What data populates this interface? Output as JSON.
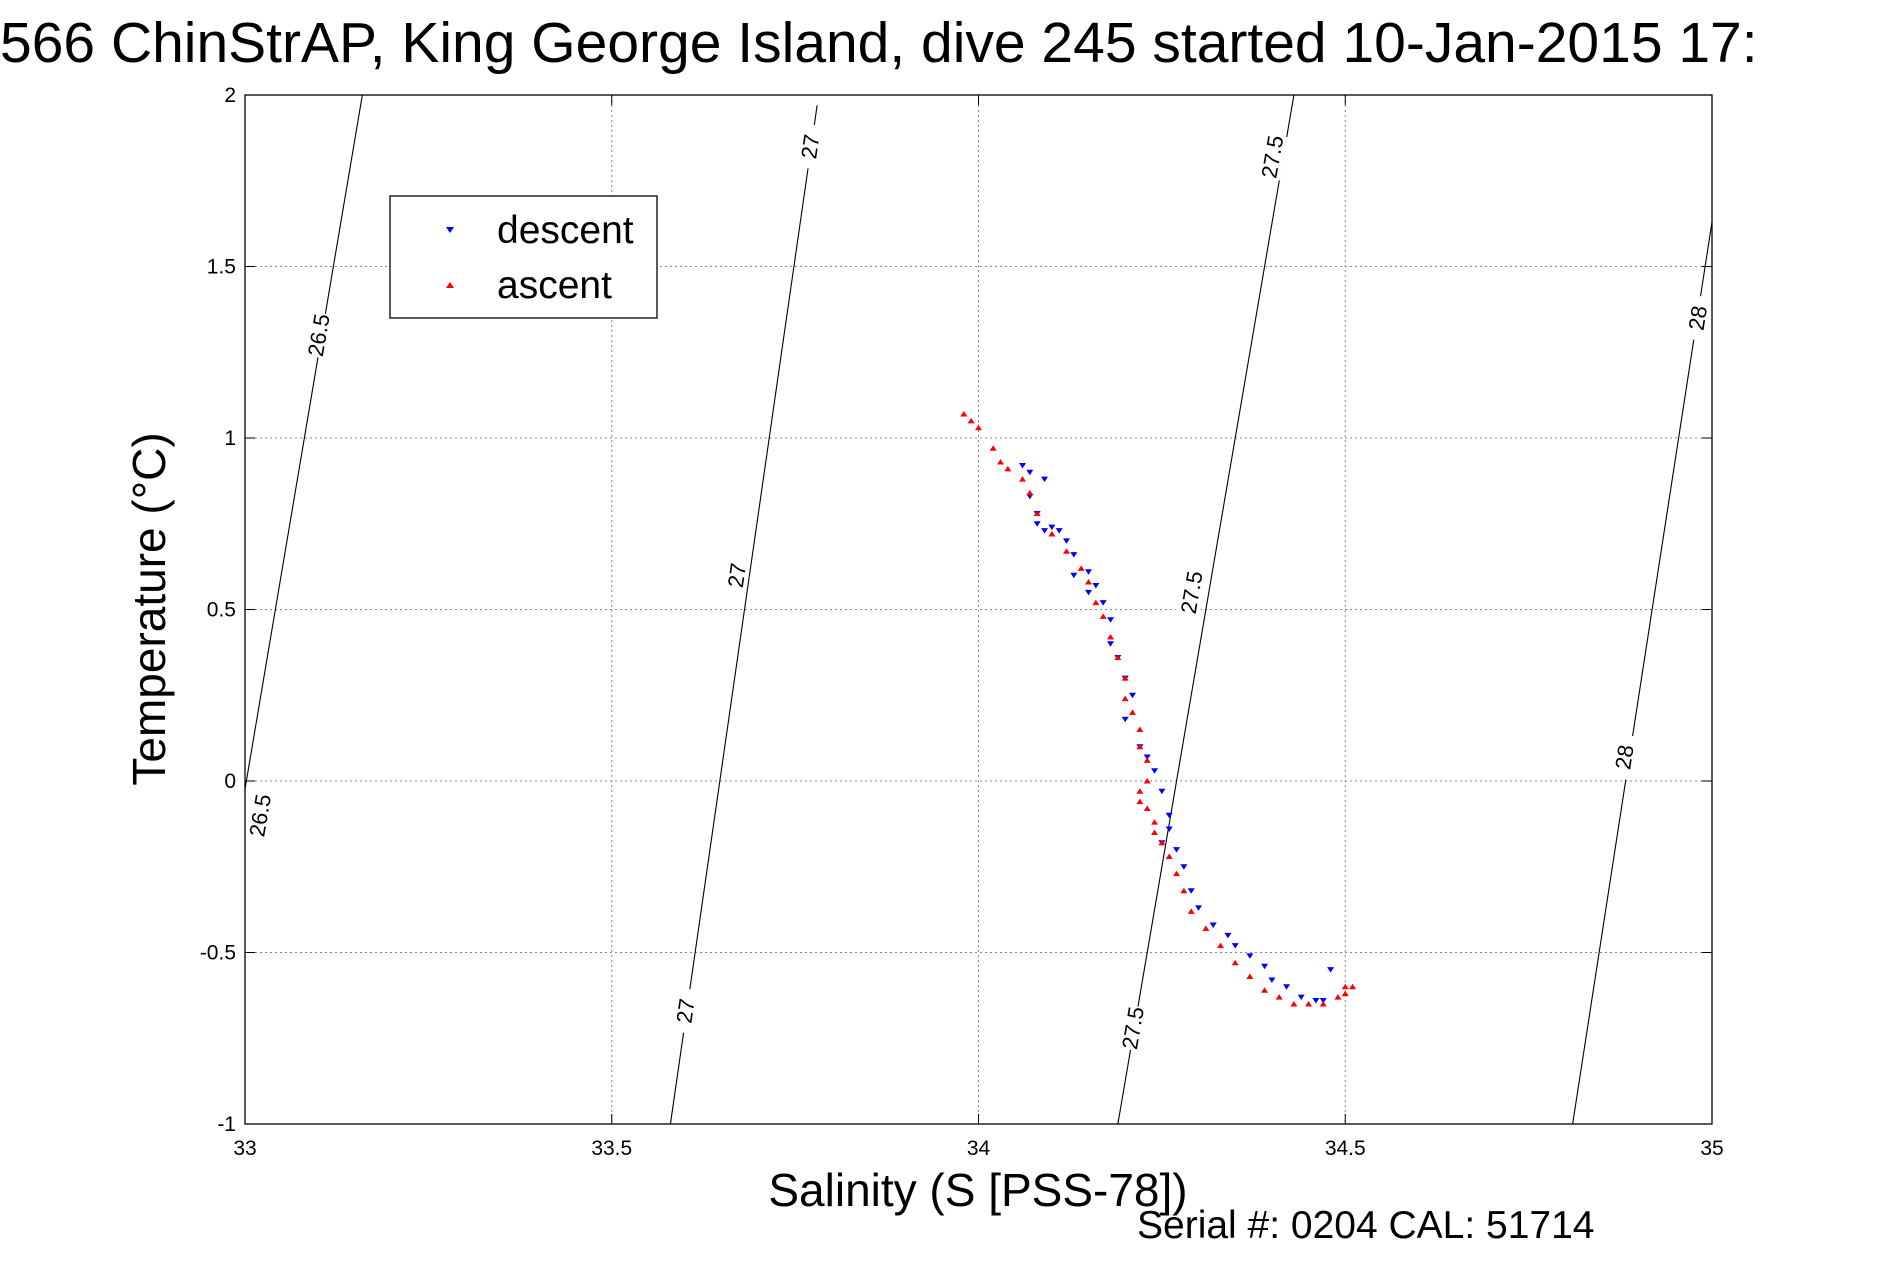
{
  "chart_data": {
    "type": "scatter",
    "title": "566 ChinStrAP, King George Island, dive 245 started 10-Jan-2015 17:",
    "xlabel": "Salinity (S [PSS-78])",
    "ylabel": "Temperature (°C)",
    "footer": "Serial #: 0204  CAL: 51714",
    "xlim": [
      33,
      35
    ],
    "ylim": [
      -1,
      2
    ],
    "grid": true,
    "legend_position": "top-left",
    "x_ticks": [
      33,
      33.5,
      34,
      34.5,
      35
    ],
    "x_tick_labels": [
      "33",
      "33.5",
      "34",
      "34.5",
      "35"
    ],
    "y_ticks": [
      -1,
      -0.5,
      0,
      0.5,
      1,
      1.5,
      2
    ],
    "y_tick_labels": [
      "-1",
      "-0.5",
      "0",
      "0.5",
      "1",
      "1.5",
      "2"
    ],
    "density_contours": [
      {
        "label": "26.5",
        "x": [
          32.99,
          33.16
        ],
        "y": [
          -0.15,
          2.0
        ],
        "label_positions": [
          [
            33.1,
            1.3
          ],
          [
            33.02,
            -0.1
          ]
        ]
      },
      {
        "label": "27",
        "x": [
          33.58,
          33.78
        ],
        "y": [
          -1.0,
          1.97
        ],
        "label_positions": [
          [
            33.6,
            -0.67
          ],
          [
            33.67,
            0.6
          ],
          [
            33.77,
            1.85
          ]
        ]
      },
      {
        "label": "27.5",
        "x": [
          34.19,
          34.43
        ],
        "y": [
          -1.0,
          2.0
        ],
        "label_positions": [
          [
            34.21,
            -0.72
          ],
          [
            34.29,
            0.55
          ],
          [
            34.4,
            1.82
          ]
        ]
      },
      {
        "label": "28",
        "x": [
          34.81,
          35.0
        ],
        "y": [
          -1.0,
          1.63
        ],
        "label_positions": [
          [
            34.88,
            0.07
          ],
          [
            34.98,
            1.35
          ]
        ]
      }
    ],
    "series": [
      {
        "name": "descent",
        "color": "#0000ff",
        "marker": "triangle-down",
        "x": [
          34.06,
          34.07,
          34.09,
          34.07,
          34.08,
          34.08,
          34.09,
          34.1,
          34.11,
          34.12,
          34.13,
          34.13,
          34.15,
          34.16,
          34.15,
          34.17,
          34.18,
          34.18,
          34.19,
          34.2,
          34.21,
          34.2,
          34.22,
          34.23,
          34.24,
          34.25,
          34.26,
          34.26,
          34.25,
          34.27,
          34.28,
          34.29,
          34.3,
          34.32,
          34.34,
          34.35,
          34.37,
          34.39,
          34.4,
          34.42,
          34.44,
          34.46,
          34.47,
          34.48
        ],
        "y": [
          0.92,
          0.9,
          0.88,
          0.83,
          0.78,
          0.75,
          0.73,
          0.74,
          0.73,
          0.7,
          0.66,
          0.6,
          0.61,
          0.57,
          0.55,
          0.52,
          0.47,
          0.4,
          0.36,
          0.3,
          0.25,
          0.18,
          0.1,
          0.07,
          0.03,
          -0.03,
          -0.1,
          -0.14,
          -0.18,
          -0.2,
          -0.25,
          -0.32,
          -0.37,
          -0.42,
          -0.45,
          -0.48,
          -0.51,
          -0.54,
          -0.58,
          -0.6,
          -0.63,
          -0.64,
          -0.64,
          -0.55
        ]
      },
      {
        "name": "ascent",
        "color": "#ff0000",
        "marker": "triangle-up",
        "x": [
          33.98,
          33.99,
          34.0,
          34.02,
          34.03,
          34.04,
          34.06,
          34.07,
          34.08,
          34.1,
          34.12,
          34.14,
          34.15,
          34.16,
          34.17,
          34.18,
          34.19,
          34.2,
          34.2,
          34.21,
          34.22,
          34.22,
          34.23,
          34.23,
          34.22,
          34.22,
          34.23,
          34.24,
          34.24,
          34.25,
          34.26,
          34.27,
          34.28,
          34.29,
          34.31,
          34.33,
          34.35,
          34.37,
          34.39,
          34.41,
          34.43,
          34.45,
          34.47,
          34.49,
          34.5,
          34.51,
          34.5
        ],
        "y": [
          1.07,
          1.05,
          1.03,
          0.97,
          0.93,
          0.91,
          0.88,
          0.84,
          0.78,
          0.72,
          0.67,
          0.62,
          0.58,
          0.52,
          0.48,
          0.42,
          0.36,
          0.3,
          0.24,
          0.2,
          0.15,
          0.1,
          0.06,
          0.0,
          -0.03,
          -0.06,
          -0.08,
          -0.12,
          -0.15,
          -0.18,
          -0.22,
          -0.27,
          -0.32,
          -0.38,
          -0.43,
          -0.48,
          -0.53,
          -0.57,
          -0.61,
          -0.63,
          -0.65,
          -0.65,
          -0.65,
          -0.63,
          -0.6,
          -0.6,
          -0.62
        ]
      }
    ]
  }
}
